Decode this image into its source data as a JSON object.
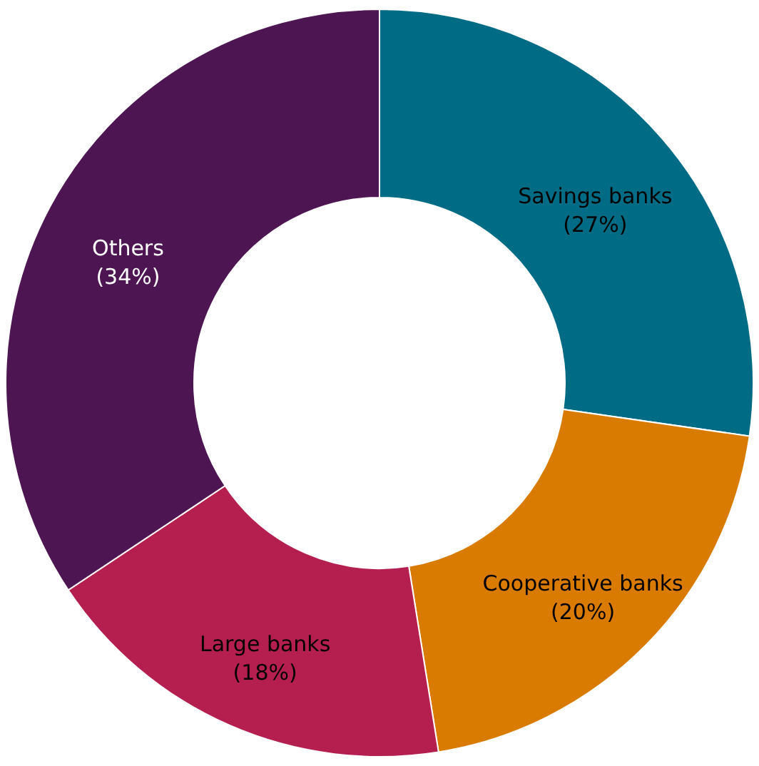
{
  "chart_data": {
    "type": "donut",
    "categories": [
      "Savings banks",
      "Cooperative banks",
      "Large banks",
      "Others"
    ],
    "values": [
      27,
      20,
      18,
      34
    ],
    "value_labels": [
      "(27%)",
      "(20%)",
      "(18%)",
      "(34%)"
    ],
    "colors": [
      "#006b85",
      "#d97b00",
      "#b51f4f",
      "#4d1552"
    ]
  }
}
